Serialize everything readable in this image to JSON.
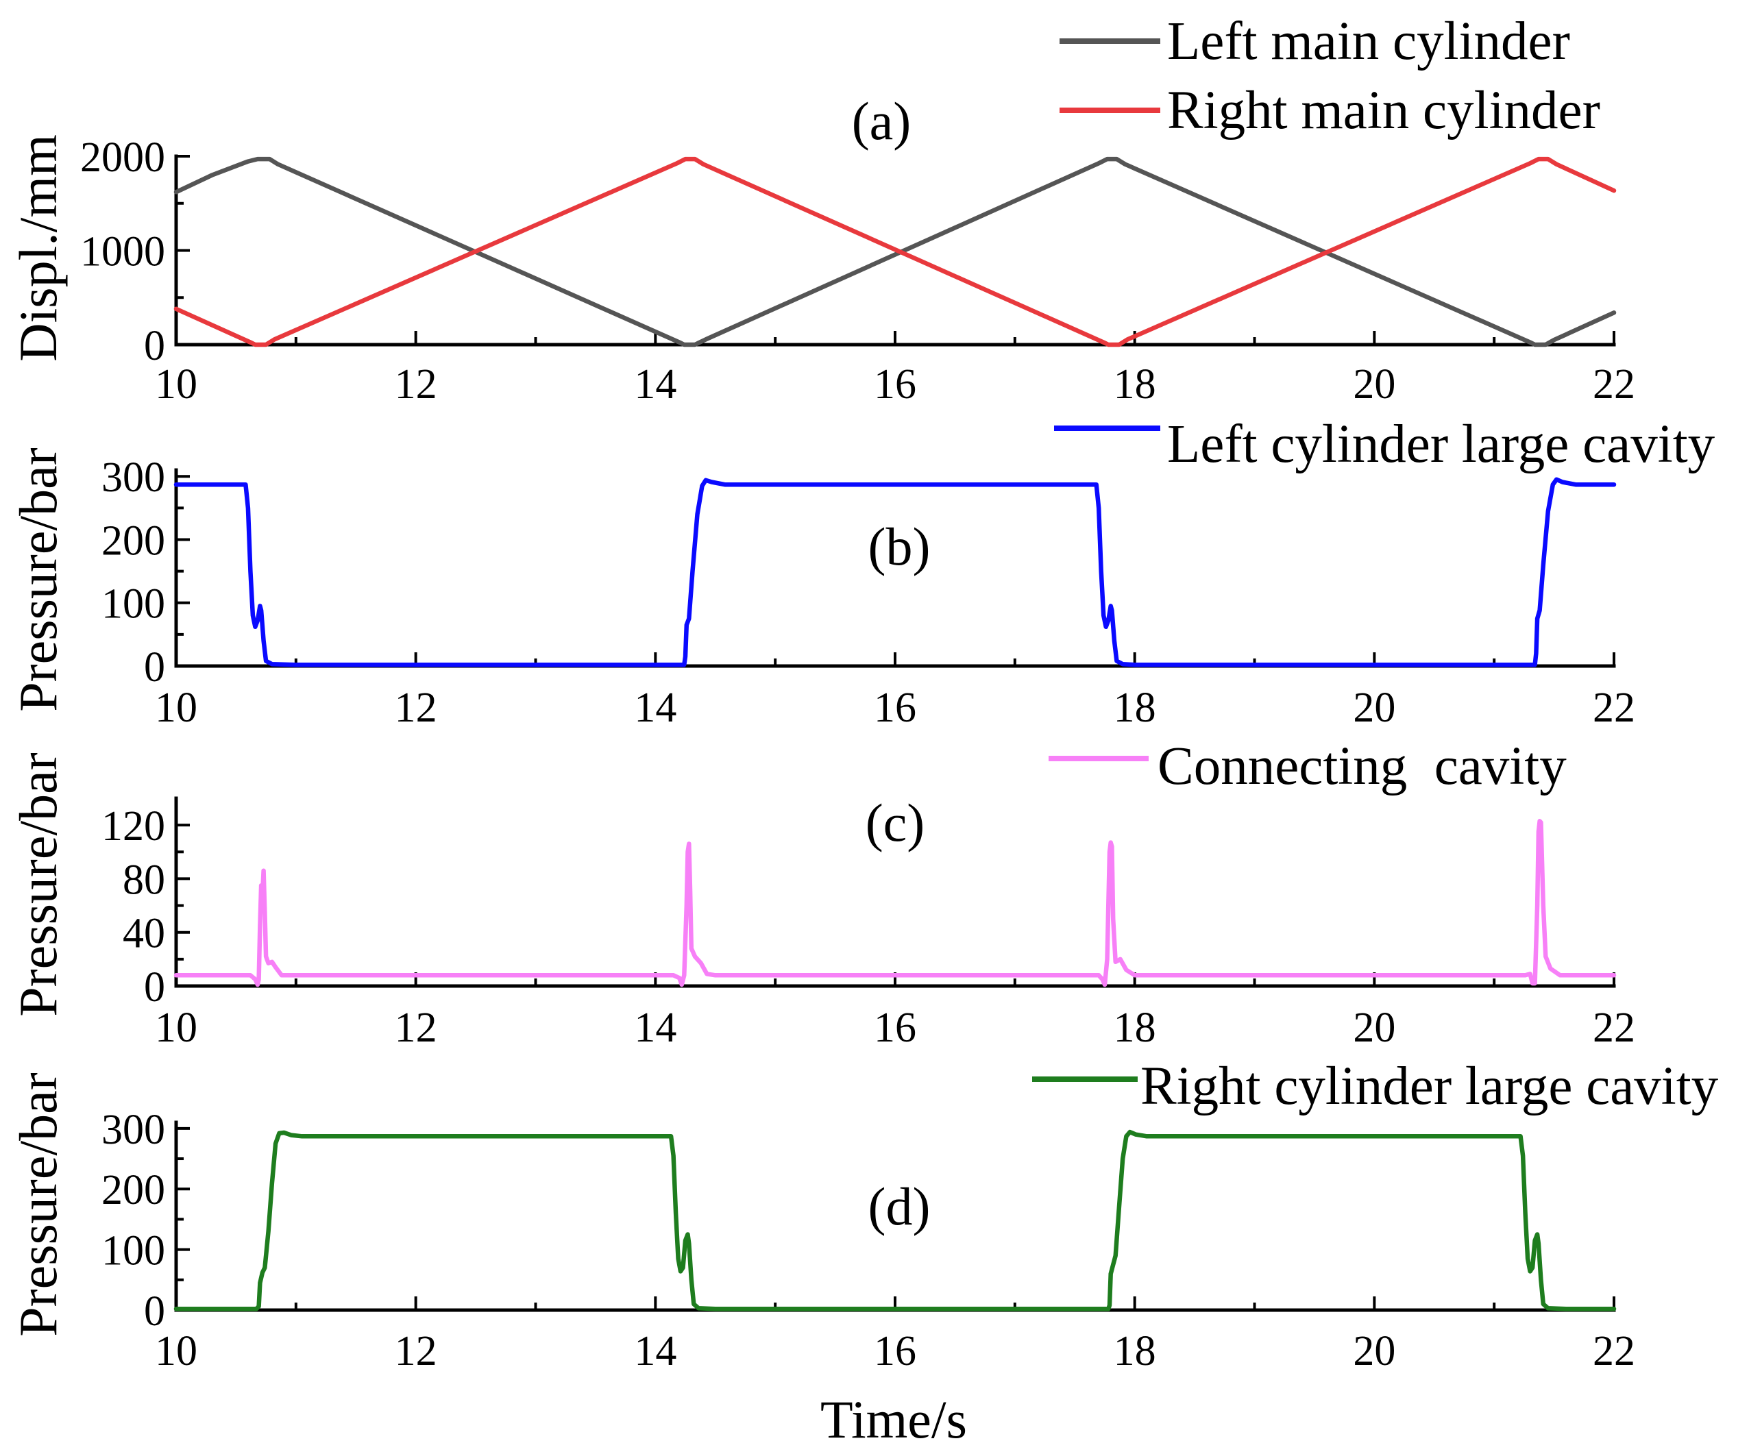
{
  "chart_data": [
    {
      "type": "line",
      "title": "(a)",
      "ylabel": "Displ./mm",
      "xlim": [
        10,
        22
      ],
      "ylim": [
        0,
        2000
      ],
      "xticks": [
        10,
        12,
        14,
        16,
        18,
        20,
        22
      ],
      "yticks": [
        0,
        1000,
        2000
      ],
      "legend": "top-right",
      "series": [
        {
          "name": "Left main cylinder",
          "color": "#555555",
          "points": [
            [
              10,
              1620
            ],
            [
              10.3,
              1800
            ],
            [
              10.6,
              1945
            ],
            [
              10.68,
              1970
            ],
            [
              10.78,
              1970
            ],
            [
              10.85,
              1915
            ],
            [
              14.2,
              25
            ],
            [
              14.24,
              0
            ],
            [
              14.33,
              0
            ],
            [
              14.42,
              55
            ],
            [
              17.7,
              1925
            ],
            [
              17.77,
              1970
            ],
            [
              17.85,
              1970
            ],
            [
              17.92,
              1915
            ],
            [
              21.3,
              25
            ],
            [
              21.34,
              0
            ],
            [
              21.43,
              0
            ],
            [
              21.5,
              50
            ],
            [
              22,
              340
            ]
          ]
        },
        {
          "name": "Right main cylinder",
          "color": "#e8393d",
          "points": [
            [
              10,
              380
            ],
            [
              10.62,
              25
            ],
            [
              10.66,
              0
            ],
            [
              10.75,
              0
            ],
            [
              10.82,
              55
            ],
            [
              14.18,
              1925
            ],
            [
              14.25,
              1970
            ],
            [
              14.33,
              1970
            ],
            [
              14.4,
              1915
            ],
            [
              17.74,
              25
            ],
            [
              17.78,
              0
            ],
            [
              17.87,
              0
            ],
            [
              17.94,
              55
            ],
            [
              21.3,
              1925
            ],
            [
              21.37,
              1970
            ],
            [
              21.45,
              1970
            ],
            [
              21.52,
              1915
            ],
            [
              22,
              1635
            ]
          ]
        }
      ]
    },
    {
      "type": "line",
      "title": "(b)",
      "ylabel": "Pressure/bar",
      "xlim": [
        10,
        22
      ],
      "ylim": [
        0,
        310
      ],
      "xticks": [
        10,
        12,
        14,
        16,
        18,
        20,
        22
      ],
      "yticks": [
        0,
        100,
        200,
        300
      ],
      "legend": "top-right",
      "series": [
        {
          "name": "Left cylinder large cavity",
          "color": "#0a0aff",
          "points": [
            [
              10,
              287
            ],
            [
              10.58,
              287
            ],
            [
              10.6,
              250
            ],
            [
              10.62,
              150
            ],
            [
              10.64,
              80
            ],
            [
              10.66,
              62
            ],
            [
              10.68,
              72
            ],
            [
              10.7,
              95
            ],
            [
              10.71,
              88
            ],
            [
              10.73,
              40
            ],
            [
              10.75,
              8
            ],
            [
              10.8,
              3
            ],
            [
              11,
              2
            ],
            [
              14.24,
              2
            ],
            [
              14.25,
              15
            ],
            [
              14.26,
              65
            ],
            [
              14.28,
              75
            ],
            [
              14.31,
              150
            ],
            [
              14.35,
              240
            ],
            [
              14.39,
              285
            ],
            [
              14.42,
              294
            ],
            [
              14.47,
              291
            ],
            [
              14.58,
              287
            ],
            [
              17.68,
              287
            ],
            [
              17.7,
              250
            ],
            [
              17.72,
              150
            ],
            [
              17.74,
              80
            ],
            [
              17.76,
              62
            ],
            [
              17.78,
              72
            ],
            [
              17.8,
              95
            ],
            [
              17.81,
              88
            ],
            [
              17.83,
              40
            ],
            [
              17.85,
              8
            ],
            [
              17.9,
              3
            ],
            [
              18,
              2
            ],
            [
              21.34,
              2
            ],
            [
              21.35,
              20
            ],
            [
              21.36,
              75
            ],
            [
              21.38,
              88
            ],
            [
              21.41,
              160
            ],
            [
              21.45,
              245
            ],
            [
              21.49,
              287
            ],
            [
              21.52,
              295
            ],
            [
              21.57,
              291
            ],
            [
              21.68,
              287
            ],
            [
              22,
              287
            ]
          ]
        }
      ]
    },
    {
      "type": "line",
      "title": "(c)",
      "ylabel": "Pressure/bar",
      "xlim": [
        10,
        22
      ],
      "ylim": [
        0,
        140
      ],
      "xticks": [
        10,
        12,
        14,
        16,
        18,
        20,
        22
      ],
      "yticks": [
        0,
        40,
        80,
        120
      ],
      "legend": "top-right",
      "series": [
        {
          "name": "Connecting  cavity",
          "color": "#f780f7",
          "points": [
            [
              10,
              8
            ],
            [
              10.62,
              8
            ],
            [
              10.66,
              5
            ],
            [
              10.68,
              1
            ],
            [
              10.69,
              5
            ],
            [
              10.7,
              45
            ],
            [
              10.71,
              75
            ],
            [
              10.72,
              68
            ],
            [
              10.73,
              86
            ],
            [
              10.74,
              55
            ],
            [
              10.75,
              22
            ],
            [
              10.77,
              17
            ],
            [
              10.8,
              18
            ],
            [
              10.83,
              14
            ],
            [
              10.88,
              8
            ],
            [
              14.15,
              8
            ],
            [
              14.2,
              6
            ],
            [
              14.22,
              1
            ],
            [
              14.24,
              8
            ],
            [
              14.26,
              60
            ],
            [
              14.27,
              100
            ],
            [
              14.28,
              106
            ],
            [
              14.29,
              72
            ],
            [
              14.3,
              28
            ],
            [
              14.33,
              22
            ],
            [
              14.38,
              17
            ],
            [
              14.43,
              9
            ],
            [
              14.5,
              8
            ],
            [
              17.7,
              8
            ],
            [
              17.73,
              5
            ],
            [
              17.75,
              1
            ],
            [
              17.77,
              20
            ],
            [
              17.79,
              100
            ],
            [
              17.8,
              107
            ],
            [
              17.81,
              104
            ],
            [
              17.82,
              50
            ],
            [
              17.84,
              18
            ],
            [
              17.88,
              20
            ],
            [
              17.93,
              12
            ],
            [
              18,
              8
            ],
            [
              21.26,
              8
            ],
            [
              21.3,
              9
            ],
            [
              21.32,
              2
            ],
            [
              21.34,
              2
            ],
            [
              21.36,
              60
            ],
            [
              21.37,
              115
            ],
            [
              21.38,
              123
            ],
            [
              21.39,
              122
            ],
            [
              21.41,
              60
            ],
            [
              21.43,
              22
            ],
            [
              21.47,
              13
            ],
            [
              21.55,
              8
            ],
            [
              22,
              8
            ]
          ]
        }
      ]
    },
    {
      "type": "line",
      "title": "(d)",
      "xlabel": "Time/s",
      "ylabel": "Pressure/bar",
      "xlim": [
        10,
        22
      ],
      "ylim": [
        0,
        310
      ],
      "xticks": [
        10,
        12,
        14,
        16,
        18,
        20,
        22
      ],
      "yticks": [
        0,
        100,
        200,
        300
      ],
      "legend": "top-right",
      "series": [
        {
          "name": "Right cylinder large cavity",
          "color": "#1e7d1e",
          "points": [
            [
              10,
              2
            ],
            [
              10.67,
              2
            ],
            [
              10.69,
              6
            ],
            [
              10.7,
              45
            ],
            [
              10.72,
              62
            ],
            [
              10.74,
              70
            ],
            [
              10.77,
              130
            ],
            [
              10.8,
              210
            ],
            [
              10.83,
              275
            ],
            [
              10.86,
              292
            ],
            [
              10.9,
              293
            ],
            [
              10.96,
              289
            ],
            [
              11.05,
              287
            ],
            [
              14.13,
              287
            ],
            [
              14.15,
              255
            ],
            [
              14.17,
              160
            ],
            [
              14.19,
              85
            ],
            [
              14.21,
              64
            ],
            [
              14.23,
              70
            ],
            [
              14.25,
              115
            ],
            [
              14.27,
              125
            ],
            [
              14.28,
              110
            ],
            [
              14.3,
              50
            ],
            [
              14.32,
              10
            ],
            [
              14.36,
              3
            ],
            [
              14.5,
              2
            ],
            [
              17.78,
              2
            ],
            [
              17.79,
              8
            ],
            [
              17.8,
              60
            ],
            [
              17.82,
              75
            ],
            [
              17.84,
              90
            ],
            [
              17.87,
              170
            ],
            [
              17.9,
              250
            ],
            [
              17.93,
              287
            ],
            [
              17.96,
              294
            ],
            [
              18.01,
              290
            ],
            [
              18.1,
              287
            ],
            [
              21.22,
              287
            ],
            [
              21.24,
              255
            ],
            [
              21.26,
              160
            ],
            [
              21.28,
              85
            ],
            [
              21.3,
              64
            ],
            [
              21.32,
              70
            ],
            [
              21.34,
              115
            ],
            [
              21.36,
              125
            ],
            [
              21.37,
              110
            ],
            [
              21.39,
              50
            ],
            [
              21.41,
              10
            ],
            [
              21.45,
              3
            ],
            [
              21.6,
              2
            ],
            [
              22,
              2
            ]
          ]
        }
      ]
    }
  ]
}
